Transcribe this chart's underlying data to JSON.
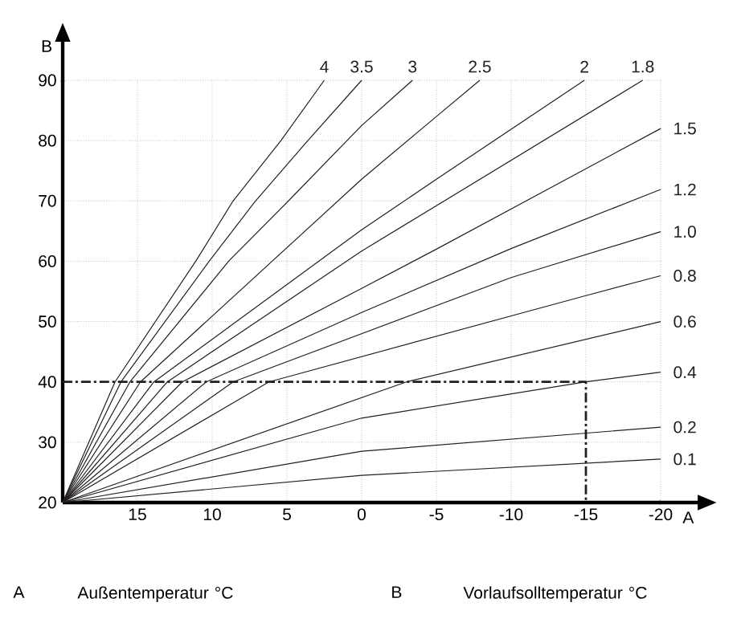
{
  "chart_data": {
    "type": "line",
    "xlabel": "A",
    "ylabel": "B",
    "xlim": [
      20,
      -20
    ],
    "ylim": [
      20,
      90
    ],
    "xticks": [
      15,
      10,
      5,
      0,
      -5,
      -10,
      -15,
      -20
    ],
    "yticks": [
      20,
      30,
      40,
      50,
      60,
      70,
      80,
      90
    ],
    "grid": true,
    "marker": "none",
    "series": [
      {
        "name": "4",
        "color": "#231f20",
        "x": [
          20,
          16.5,
          11.1,
          8.6,
          5.4,
          2.5
        ],
        "values": [
          20,
          40,
          60,
          70,
          80,
          90
        ]
      },
      {
        "name": "3.5",
        "color": "#231f20",
        "x": [
          20,
          16.1,
          10.2,
          7.1,
          3.6,
          0
        ],
        "values": [
          20,
          40,
          60,
          70,
          80,
          90
        ]
      },
      {
        "name": "3",
        "color": "#231f20",
        "x": [
          20,
          15.5,
          8.9,
          4.9,
          0,
          -3.4
        ],
        "values": [
          20,
          40,
          60,
          70,
          82.5,
          90
        ]
      },
      {
        "name": "2.5",
        "color": "#231f20",
        "x": [
          20,
          14.8,
          0,
          -5,
          -7.9
        ],
        "values": [
          20,
          40,
          73.6,
          84,
          90
        ]
      },
      {
        "name": "2",
        "color": "#231f20",
        "x": [
          20,
          13.9,
          0,
          -5,
          -14.9
        ],
        "values": [
          20,
          40,
          65.2,
          73.6,
          90
        ]
      },
      {
        "name": "1.8",
        "color": "#231f20",
        "x": [
          20,
          13,
          0,
          -5,
          -18.8
        ],
        "values": [
          20,
          40,
          61.7,
          69.2,
          90
        ]
      },
      {
        "name": "1.5",
        "color": "#231f20",
        "x": [
          20,
          12,
          0,
          -5,
          -20
        ],
        "values": [
          20,
          40,
          55.5,
          62,
          82
        ]
      },
      {
        "name": "1.2",
        "color": "#231f20",
        "x": [
          20,
          10.4,
          0,
          -10,
          -20
        ],
        "values": [
          20,
          40,
          51.5,
          62.1,
          71.9
        ]
      },
      {
        "name": "1.0",
        "color": "#231f20",
        "x": [
          20,
          8.6,
          -10,
          -20
        ],
        "values": [
          20,
          40,
          57.3,
          64.9
        ]
      },
      {
        "name": "0.8",
        "color": "#231f20",
        "x": [
          20,
          6.2,
          -15,
          -20
        ],
        "values": [
          20,
          40,
          54.3,
          57.6
        ]
      },
      {
        "name": "0.6",
        "color": "#231f20",
        "x": [
          20,
          -3,
          -20
        ],
        "values": [
          20,
          40,
          50
        ]
      },
      {
        "name": "0.4",
        "color": "#231f20",
        "x": [
          20,
          0,
          -15,
          -20
        ],
        "values": [
          20,
          34,
          40,
          41.6
        ]
      },
      {
        "name": "0.2",
        "color": "#231f20",
        "x": [
          20,
          0,
          -20
        ],
        "values": [
          20,
          28.5,
          32.5
        ]
      },
      {
        "name": "0.1",
        "color": "#231f20",
        "x": [
          20,
          0,
          -20
        ],
        "values": [
          20,
          24.5,
          27.2
        ]
      },
      {
        "color": "#231f20",
        "line_style": "dashdot",
        "x": [
          20,
          -15,
          -15
        ],
        "values": [
          40,
          40,
          20
        ]
      }
    ],
    "annotations": [
      "A",
      "Außentemperatur °C",
      "B",
      "Vorlaufsolltemperatur °C"
    ]
  }
}
